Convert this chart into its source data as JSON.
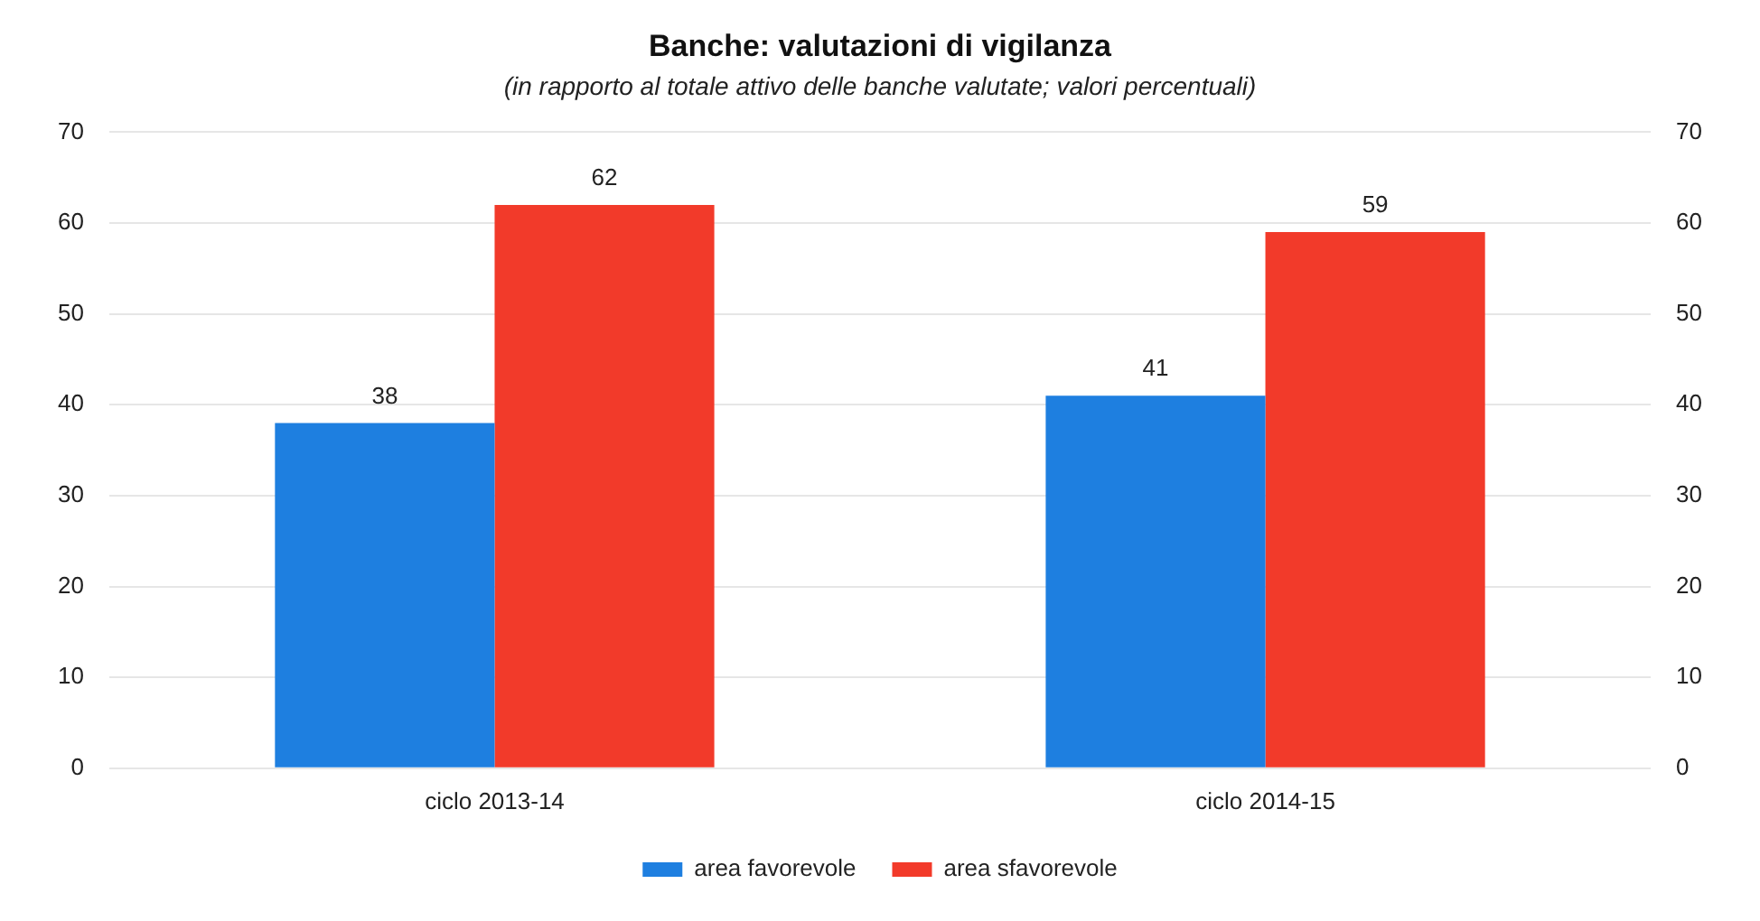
{
  "chart_data": {
    "type": "bar",
    "title": "Banche: valutazioni di vigilanza",
    "subtitle": "(in rapporto al totale attivo delle banche valutate; valori percentuali)",
    "categories": [
      "ciclo 2013-14",
      "ciclo 2014-15"
    ],
    "series": [
      {
        "name": "area favorevole",
        "color": "#1e7fe0",
        "values": [
          38,
          41
        ]
      },
      {
        "name": "area sfavorevole",
        "color": "#f23a2a",
        "values": [
          62,
          59
        ]
      }
    ],
    "ylim": [
      0,
      70
    ],
    "yticks": [
      0,
      10,
      20,
      30,
      40,
      50,
      60,
      70
    ],
    "y2lim": [
      0,
      70
    ],
    "y2ticks": [
      0,
      10,
      20,
      30,
      40,
      50,
      60,
      70
    ],
    "grid": "y",
    "legend": "bottom",
    "data_labels": true
  }
}
